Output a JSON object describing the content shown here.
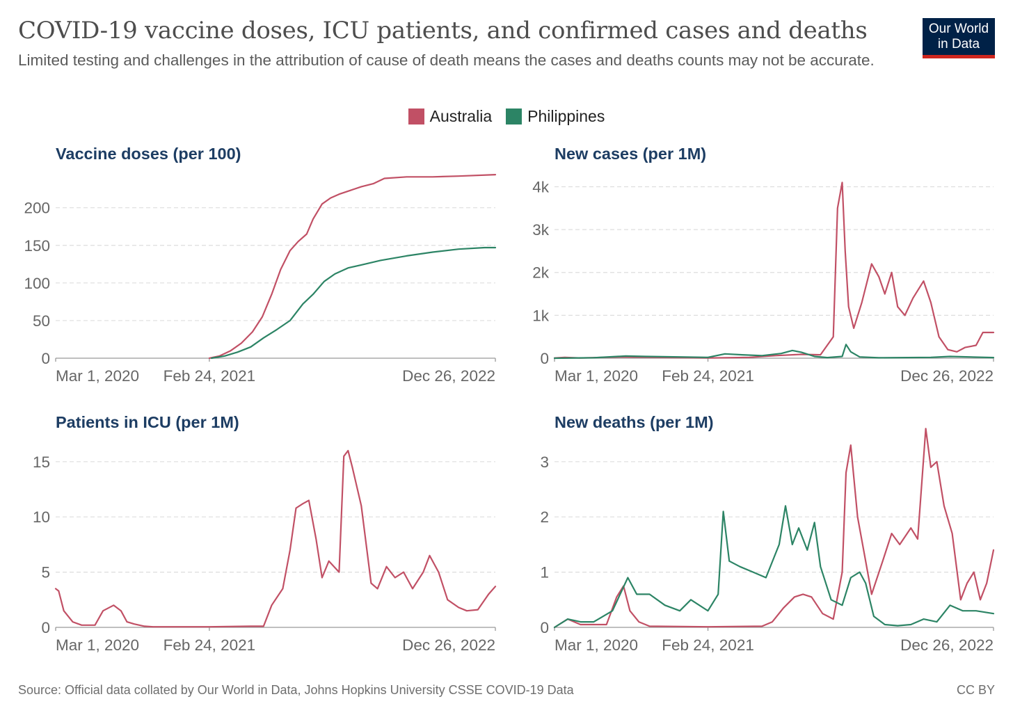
{
  "header": {
    "title": "COVID-19 vaccine doses, ICU patients, and confirmed cases and deaths",
    "subtitle": "Limited testing and challenges in the attribution of cause of death means the cases and deaths counts may not be accurate.",
    "logo_line1": "Our World",
    "logo_line2": "in Data"
  },
  "legend": [
    {
      "name": "Australia",
      "color": "#c15065"
    },
    {
      "name": "Philippines",
      "color": "#2c8465"
    }
  ],
  "footer": {
    "source": "Source: Official data collated by Our World in Data, Johns Hopkins University CSSE COVID-19 Data",
    "license": "CC BY"
  },
  "chart_data": [
    {
      "type": "line",
      "title": "Vaccine doses (per 100)",
      "xlim": [
        "2020-03-01",
        "2022-12-26"
      ],
      "xticks": [
        "Mar 1, 2020",
        "Feb 24, 2021",
        "Dec 26, 2022"
      ],
      "yticks": [
        {
          "value": 0,
          "label": "0"
        },
        {
          "value": 50,
          "label": "50"
        },
        {
          "value": 100,
          "label": "100"
        },
        {
          "value": 150,
          "label": "150"
        },
        {
          "value": 200,
          "label": "200"
        }
      ],
      "ylim": [
        0,
        245
      ],
      "series": [
        {
          "name": "Australia",
          "color": "#c15065",
          "x": [
            "2021-02-24",
            "2021-03-20",
            "2021-04-15",
            "2021-05-10",
            "2021-06-05",
            "2021-06-28",
            "2021-07-20",
            "2021-08-10",
            "2021-09-01",
            "2021-09-20",
            "2021-10-10",
            "2021-10-25",
            "2021-11-15",
            "2021-12-05",
            "2021-12-25",
            "2022-01-20",
            "2022-02-15",
            "2022-03-15",
            "2022-04-10",
            "2022-06-01",
            "2022-08-01",
            "2022-10-01",
            "2022-12-26"
          ],
          "y": [
            0,
            3,
            10,
            20,
            35,
            55,
            85,
            118,
            143,
            155,
            165,
            185,
            205,
            213,
            218,
            223,
            228,
            232,
            239,
            241,
            241,
            242,
            244
          ]
        },
        {
          "name": "Philippines",
          "color": "#2c8465",
          "x": [
            "2021-03-01",
            "2021-04-01",
            "2021-05-01",
            "2021-06-01",
            "2021-07-01",
            "2021-08-01",
            "2021-09-01",
            "2021-10-01",
            "2021-10-25",
            "2021-11-20",
            "2021-12-15",
            "2022-01-15",
            "2022-02-15",
            "2022-04-01",
            "2022-06-01",
            "2022-08-01",
            "2022-10-01",
            "2022-12-01",
            "2022-12-26"
          ],
          "y": [
            0,
            3,
            8,
            15,
            27,
            38,
            50,
            72,
            85,
            102,
            112,
            120,
            124,
            130,
            136,
            141,
            145,
            147,
            147
          ]
        }
      ]
    },
    {
      "type": "line",
      "title": "New cases (per 1M)",
      "xlim": [
        "2020-03-01",
        "2022-12-26"
      ],
      "xticks": [
        "Mar 1, 2020",
        "Feb 24, 2021",
        "Dec 26, 2022"
      ],
      "yticks": [
        {
          "value": 0,
          "label": "0"
        },
        {
          "value": 1000,
          "label": "1k"
        },
        {
          "value": 2000,
          "label": "2k"
        },
        {
          "value": 3000,
          "label": "3k"
        },
        {
          "value": 4000,
          "label": "4k"
        }
      ],
      "ylim": [
        0,
        4300
      ],
      "series": [
        {
          "name": "Australia",
          "color": "#c15065",
          "x": [
            "2020-03-01",
            "2020-03-25",
            "2020-05-01",
            "2020-08-01",
            "2021-02-24",
            "2021-06-01",
            "2021-08-01",
            "2021-10-01",
            "2021-11-15",
            "2021-12-15",
            "2021-12-25",
            "2022-01-05",
            "2022-01-12",
            "2022-01-20",
            "2022-02-01",
            "2022-02-20",
            "2022-03-15",
            "2022-04-01",
            "2022-04-15",
            "2022-05-01",
            "2022-05-15",
            "2022-06-01",
            "2022-06-20",
            "2022-07-15",
            "2022-08-01",
            "2022-08-20",
            "2022-09-10",
            "2022-10-01",
            "2022-10-20",
            "2022-11-15",
            "2022-12-01",
            "2022-12-26"
          ],
          "y": [
            5,
            20,
            5,
            30,
            5,
            20,
            60,
            90,
            80,
            500,
            3500,
            4100,
            2500,
            1200,
            700,
            1300,
            2200,
            1900,
            1500,
            2000,
            1200,
            1000,
            1400,
            1800,
            1300,
            500,
            200,
            150,
            250,
            300,
            600,
            600
          ]
        },
        {
          "name": "Philippines",
          "color": "#2c8465",
          "x": [
            "2020-03-01",
            "2020-06-01",
            "2020-08-15",
            "2020-10-01",
            "2021-02-24",
            "2021-04-05",
            "2021-05-15",
            "2021-07-01",
            "2021-08-15",
            "2021-09-10",
            "2021-10-01",
            "2021-11-01",
            "2021-12-01",
            "2022-01-05",
            "2022-01-14",
            "2022-01-25",
            "2022-02-15",
            "2022-04-01",
            "2022-08-01",
            "2022-09-15",
            "2022-12-26"
          ],
          "y": [
            0,
            10,
            50,
            40,
            20,
            100,
            80,
            60,
            110,
            180,
            140,
            40,
            15,
            40,
            320,
            150,
            30,
            10,
            20,
            40,
            15
          ]
        }
      ]
    },
    {
      "type": "line",
      "title": "Patients in ICU (per 1M)",
      "xlim": [
        "2020-03-01",
        "2022-12-26"
      ],
      "xticks": [
        "Mar 1, 2020",
        "Feb 24, 2021",
        "Dec 26, 2022"
      ],
      "yticks": [
        {
          "value": 0,
          "label": "0"
        },
        {
          "value": 5,
          "label": "5"
        },
        {
          "value": 10,
          "label": "10"
        },
        {
          "value": 15,
          "label": "15"
        }
      ],
      "ylim": [
        0,
        16.5
      ],
      "series": [
        {
          "name": "Australia",
          "color": "#c15065",
          "x": [
            "2020-03-01",
            "2020-03-08",
            "2020-03-20",
            "2020-04-10",
            "2020-05-01",
            "2020-06-01",
            "2020-06-20",
            "2020-07-15",
            "2020-08-01",
            "2020-08-15",
            "2020-09-01",
            "2020-09-25",
            "2020-10-15",
            "2021-02-24",
            "2021-06-01",
            "2021-07-01",
            "2021-07-20",
            "2021-08-15",
            "2021-09-01",
            "2021-09-15",
            "2021-10-01",
            "2021-10-15",
            "2021-11-01",
            "2021-11-15",
            "2021-12-01",
            "2021-12-25",
            "2022-01-05",
            "2022-01-15",
            "2022-01-25",
            "2022-02-15",
            "2022-03-10",
            "2022-03-25",
            "2022-04-15",
            "2022-05-05",
            "2022-05-25",
            "2022-06-15",
            "2022-07-10",
            "2022-07-25",
            "2022-08-15",
            "2022-09-05",
            "2022-10-01",
            "2022-10-20",
            "2022-11-15",
            "2022-12-10",
            "2022-12-26"
          ],
          "y": [
            3.5,
            3.3,
            1.5,
            0.5,
            0.2,
            0.2,
            1.5,
            2.0,
            1.5,
            0.5,
            0.3,
            0.1,
            0.05,
            0.05,
            0.1,
            0.1,
            2.0,
            3.5,
            7.0,
            10.8,
            11.2,
            11.5,
            8.0,
            4.5,
            6.0,
            5.0,
            15.5,
            16.0,
            14.5,
            11.0,
            4.0,
            3.5,
            5.5,
            4.5,
            5.0,
            3.5,
            5.0,
            6.5,
            5.0,
            2.5,
            1.8,
            1.5,
            1.6,
            3.0,
            3.7
          ]
        }
      ]
    },
    {
      "type": "line",
      "title": "New deaths (per 1M)",
      "xlim": [
        "2020-03-01",
        "2022-12-26"
      ],
      "xticks": [
        "Mar 1, 2020",
        "Feb 24, 2021",
        "Dec 26, 2022"
      ],
      "yticks": [
        {
          "value": 0,
          "label": "0"
        },
        {
          "value": 1,
          "label": "1"
        },
        {
          "value": 2,
          "label": "2"
        },
        {
          "value": 3,
          "label": "3"
        }
      ],
      "ylim": [
        0,
        3.3
      ],
      "series": [
        {
          "name": "Australia",
          "color": "#c15065",
          "x": [
            "2020-03-01",
            "2020-04-01",
            "2020-05-01",
            "2020-07-01",
            "2020-07-25",
            "2020-08-10",
            "2020-08-25",
            "2020-09-15",
            "2020-10-10",
            "2021-02-24",
            "2021-07-01",
            "2021-07-25",
            "2021-08-20",
            "2021-09-15",
            "2021-10-05",
            "2021-10-25",
            "2021-11-20",
            "2021-12-15",
            "2022-01-05",
            "2022-01-14",
            "2022-01-25",
            "2022-02-10",
            "2022-03-01",
            "2022-03-15",
            "2022-04-10",
            "2022-05-01",
            "2022-05-20",
            "2022-06-15",
            "2022-07-01",
            "2022-07-20",
            "2022-08-01",
            "2022-08-15",
            "2022-09-01",
            "2022-09-20",
            "2022-10-10",
            "2022-10-25",
            "2022-11-10",
            "2022-11-25",
            "2022-12-10",
            "2022-12-26"
          ],
          "y": [
            0.0,
            0.15,
            0.05,
            0.05,
            0.55,
            0.75,
            0.3,
            0.1,
            0.02,
            0.01,
            0.02,
            0.1,
            0.35,
            0.55,
            0.6,
            0.55,
            0.25,
            0.15,
            1.0,
            2.8,
            3.3,
            2.0,
            1.2,
            0.6,
            1.2,
            1.7,
            1.5,
            1.8,
            1.6,
            3.6,
            2.9,
            3.0,
            2.2,
            1.7,
            0.5,
            0.8,
            1.0,
            0.5,
            0.8,
            1.4
          ]
        },
        {
          "name": "Philippines",
          "color": "#2c8465",
          "x": [
            "2020-03-01",
            "2020-04-01",
            "2020-05-01",
            "2020-06-01",
            "2020-07-15",
            "2020-08-20",
            "2020-09-10",
            "2020-10-10",
            "2020-11-15",
            "2020-12-20",
            "2021-01-15",
            "2021-02-24",
            "2021-03-20",
            "2021-04-01",
            "2021-04-15",
            "2021-05-10",
            "2021-06-10",
            "2021-07-10",
            "2021-08-10",
            "2021-08-25",
            "2021-09-10",
            "2021-09-25",
            "2021-10-15",
            "2021-11-01",
            "2021-11-15",
            "2021-12-10",
            "2022-01-05",
            "2022-01-25",
            "2022-02-15",
            "2022-03-01",
            "2022-03-20",
            "2022-04-15",
            "2022-05-15",
            "2022-06-15",
            "2022-07-15",
            "2022-08-15",
            "2022-09-15",
            "2022-10-15",
            "2022-11-15",
            "2022-12-26"
          ],
          "y": [
            0.0,
            0.15,
            0.1,
            0.1,
            0.3,
            0.9,
            0.6,
            0.6,
            0.4,
            0.3,
            0.5,
            0.3,
            0.6,
            2.1,
            1.2,
            1.1,
            1.0,
            0.9,
            1.5,
            2.2,
            1.5,
            1.8,
            1.4,
            1.9,
            1.1,
            0.5,
            0.4,
            0.9,
            1.0,
            0.8,
            0.2,
            0.05,
            0.03,
            0.05,
            0.15,
            0.1,
            0.4,
            0.3,
            0.3,
            0.25
          ]
        }
      ]
    }
  ]
}
